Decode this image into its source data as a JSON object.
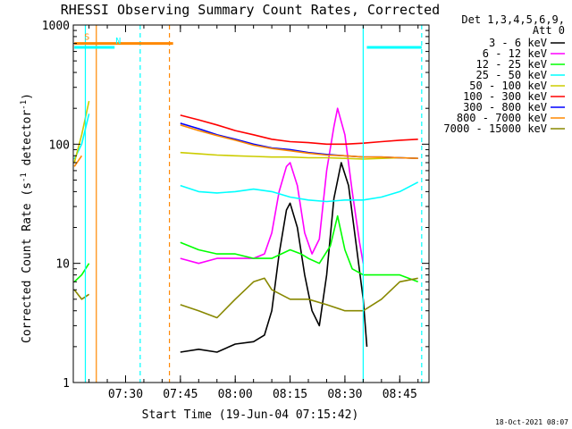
{
  "chart_data": {
    "type": "line",
    "title": "RHESSI Observing Summary Count Rates, Corrected",
    "xlabel": "Start Time (19-Jun-04 07:15:42)",
    "ylabel_main": "Corrected Count Rate (s",
    "ylabel_sup1": "-1",
    "ylabel_mid": " detector",
    "ylabel_sup2": "-1",
    "ylabel_end": ")",
    "yscale": "log",
    "xlim": [
      "07:15:42",
      "08:53:00"
    ],
    "ylim": [
      1,
      1000
    ],
    "x_ticks": [
      {
        "label": "07:30",
        "t": "07:30"
      },
      {
        "label": "07:45",
        "t": "07:45"
      },
      {
        "label": "08:00",
        "t": "08:00"
      },
      {
        "label": "08:15",
        "t": "08:15"
      },
      {
        "label": "08:30",
        "t": "08:30"
      },
      {
        "label": "08:45",
        "t": "08:45"
      }
    ],
    "y_ticks": [
      {
        "label": "1",
        "v": 1
      },
      {
        "label": "10",
        "v": 10
      },
      {
        "label": "100",
        "v": 100
      },
      {
        "label": "1000",
        "v": 1000
      }
    ],
    "legend_header": [
      "Det 1,3,4,5,6,9,",
      "Att 0"
    ],
    "legend_position": "right",
    "series": [
      {
        "name": "3 - 6 keV",
        "color": "#000000",
        "points": [
          [
            "07:45",
            "1.8"
          ],
          [
            "07:50",
            "1.9"
          ],
          [
            "07:55",
            "1.8"
          ],
          [
            "08:00",
            "2.1"
          ],
          [
            "08:05",
            "2.2"
          ],
          [
            "08:08",
            "2.5"
          ],
          [
            "08:10",
            "4"
          ],
          [
            "08:12",
            "12"
          ],
          [
            "08:14",
            "28"
          ],
          [
            "08:15",
            "32"
          ],
          [
            "08:17",
            "20"
          ],
          [
            "08:19",
            "8"
          ],
          [
            "08:21",
            "4"
          ],
          [
            "08:23",
            "3"
          ],
          [
            "08:25",
            "8"
          ],
          [
            "08:27",
            "35"
          ],
          [
            "08:29",
            "70"
          ],
          [
            "08:31",
            "45"
          ],
          [
            "08:33",
            "15"
          ],
          [
            "08:35",
            "5"
          ],
          [
            "08:36",
            "2"
          ]
        ]
      },
      {
        "name": "6 - 12 keV",
        "color": "#ff00ff",
        "points": [
          [
            "07:45",
            "11"
          ],
          [
            "07:50",
            "10"
          ],
          [
            "07:55",
            "11"
          ],
          [
            "08:00",
            "11"
          ],
          [
            "08:05",
            "11"
          ],
          [
            "08:08",
            "12"
          ],
          [
            "08:10",
            "18"
          ],
          [
            "08:12",
            "40"
          ],
          [
            "08:14",
            "65"
          ],
          [
            "08:15",
            "70"
          ],
          [
            "08:17",
            "45"
          ],
          [
            "08:19",
            "18"
          ],
          [
            "08:21",
            "12"
          ],
          [
            "08:23",
            "16"
          ],
          [
            "08:25",
            "60"
          ],
          [
            "08:27",
            "140"
          ],
          [
            "08:28",
            "200"
          ],
          [
            "08:30",
            "120"
          ],
          [
            "08:32",
            "40"
          ],
          [
            "08:34",
            "15"
          ],
          [
            "08:35",
            "10"
          ]
        ]
      },
      {
        "name": "12 - 25 keV",
        "color": "#00ff00",
        "points": [
          [
            "07:16",
            "7"
          ],
          [
            "07:18",
            "8"
          ],
          [
            "07:20",
            "10"
          ],
          [
            "07:45",
            "15"
          ],
          [
            "07:50",
            "13"
          ],
          [
            "07:55",
            "12"
          ],
          [
            "08:00",
            "12"
          ],
          [
            "08:05",
            "11"
          ],
          [
            "08:10",
            "11"
          ],
          [
            "08:15",
            "13"
          ],
          [
            "08:18",
            "12"
          ],
          [
            "08:20",
            "11"
          ],
          [
            "08:23",
            "10"
          ],
          [
            "08:26",
            "14"
          ],
          [
            "08:28",
            "25"
          ],
          [
            "08:30",
            "13"
          ],
          [
            "08:32",
            "9"
          ],
          [
            "08:35",
            "8"
          ],
          [
            "08:40",
            "8"
          ],
          [
            "08:45",
            "8"
          ],
          [
            "08:50",
            "7"
          ]
        ]
      },
      {
        "name": "25 - 50 keV",
        "color": "#00ffff",
        "points": [
          [
            "07:16",
            "75"
          ],
          [
            "07:18",
            "100"
          ],
          [
            "07:20",
            "180"
          ],
          [
            "07:45",
            "45"
          ],
          [
            "07:50",
            "40"
          ],
          [
            "07:55",
            "39"
          ],
          [
            "08:00",
            "40"
          ],
          [
            "08:05",
            "42"
          ],
          [
            "08:10",
            "40"
          ],
          [
            "08:15",
            "36"
          ],
          [
            "08:20",
            "34"
          ],
          [
            "08:25",
            "33"
          ],
          [
            "08:30",
            "34"
          ],
          [
            "08:35",
            "34"
          ],
          [
            "08:40",
            "36"
          ],
          [
            "08:45",
            "40"
          ],
          [
            "08:50",
            "48"
          ]
        ]
      },
      {
        "name": "50 - 100 keV",
        "color": "#cccc00",
        "points": [
          [
            "07:16",
            "70"
          ],
          [
            "07:18",
            "120"
          ],
          [
            "07:20",
            "230"
          ],
          [
            "07:45",
            "85"
          ],
          [
            "07:50",
            "83"
          ],
          [
            "07:55",
            "81"
          ],
          [
            "08:00",
            "80"
          ],
          [
            "08:05",
            "79"
          ],
          [
            "08:10",
            "78"
          ],
          [
            "08:15",
            "78"
          ],
          [
            "08:20",
            "77"
          ],
          [
            "08:25",
            "77"
          ],
          [
            "08:30",
            "76"
          ],
          [
            "08:35",
            "75"
          ],
          [
            "08:40",
            "76"
          ],
          [
            "08:45",
            "77"
          ],
          [
            "08:50",
            "76"
          ]
        ]
      },
      {
        "name": "100 - 300 keV",
        "color": "#ff0000",
        "points": [
          [
            "07:45",
            "175"
          ],
          [
            "07:50",
            "160"
          ],
          [
            "07:55",
            "145"
          ],
          [
            "08:00",
            "130"
          ],
          [
            "08:05",
            "120"
          ],
          [
            "08:10",
            "110"
          ],
          [
            "08:15",
            "105"
          ],
          [
            "08:20",
            "103"
          ],
          [
            "08:25",
            "100"
          ],
          [
            "08:30",
            "100"
          ],
          [
            "08:35",
            "102"
          ],
          [
            "08:40",
            "105"
          ],
          [
            "08:45",
            "108"
          ],
          [
            "08:50",
            "110"
          ]
        ]
      },
      {
        "name": "300 - 800 keV",
        "color": "#0000ff",
        "points": [
          [
            "07:45",
            "150"
          ],
          [
            "07:50",
            "135"
          ],
          [
            "07:55",
            "120"
          ],
          [
            "08:00",
            "110"
          ],
          [
            "08:05",
            "100"
          ],
          [
            "08:10",
            "93"
          ],
          [
            "08:15",
            "90"
          ],
          [
            "08:20",
            "85"
          ],
          [
            "08:25",
            "82"
          ],
          [
            "08:30",
            "80"
          ],
          [
            "08:35",
            "78"
          ],
          [
            "08:40",
            "78"
          ],
          [
            "08:45",
            "77"
          ],
          [
            "08:50",
            "76"
          ]
        ]
      },
      {
        "name": "800 - 7000 keV",
        "color": "#ff8800",
        "points": [
          [
            "07:16",
            "65"
          ],
          [
            "07:18",
            "80"
          ],
          [
            "07:45",
            "145"
          ],
          [
            "07:50",
            "130"
          ],
          [
            "07:55",
            "118"
          ],
          [
            "08:00",
            "108"
          ],
          [
            "08:05",
            "98"
          ],
          [
            "08:10",
            "92"
          ],
          [
            "08:15",
            "88"
          ],
          [
            "08:20",
            "84"
          ],
          [
            "08:25",
            "81"
          ],
          [
            "08:30",
            "80"
          ],
          [
            "08:35",
            "78"
          ],
          [
            "08:40",
            "78"
          ],
          [
            "08:45",
            "77"
          ],
          [
            "08:50",
            "76"
          ]
        ]
      },
      {
        "name": "7000 - 15000 keV",
        "color": "#888800",
        "points": [
          [
            "07:16",
            "6"
          ],
          [
            "07:18",
            "5"
          ],
          [
            "07:20",
            "5.5"
          ],
          [
            "07:45",
            "4.5"
          ],
          [
            "07:50",
            "4"
          ],
          [
            "07:55",
            "3.5"
          ],
          [
            "08:00",
            "5"
          ],
          [
            "08:05",
            "7"
          ],
          [
            "08:08",
            "7.5"
          ],
          [
            "08:10",
            "6"
          ],
          [
            "08:15",
            "5"
          ],
          [
            "08:20",
            "5"
          ],
          [
            "08:25",
            "4.5"
          ],
          [
            "08:30",
            "4"
          ],
          [
            "08:35",
            "4"
          ],
          [
            "08:40",
            "5"
          ],
          [
            "08:45",
            "7"
          ],
          [
            "08:50",
            "7.5"
          ]
        ]
      }
    ],
    "annotations": [
      {
        "label": "S",
        "color": "#ff8800",
        "from": "07:16",
        "to": "07:43",
        "level": "700"
      },
      {
        "label": "N",
        "color": "#00ffff",
        "from": "07:16",
        "to": "07:27",
        "level": "650"
      },
      {
        "label": "",
        "color": "#00ffff",
        "from": "08:36",
        "to": "08:51",
        "level": "650"
      }
    ],
    "vertical_lines": [
      {
        "t": "07:19",
        "color": "#00ffff",
        "style": "solid"
      },
      {
        "t": "07:22",
        "color": "#ff8800",
        "style": "solid"
      },
      {
        "t": "07:34",
        "color": "#00ffff",
        "style": "dashed"
      },
      {
        "t": "07:42",
        "color": "#ff8800",
        "style": "dashed"
      },
      {
        "t": "08:35",
        "color": "#00ffff",
        "style": "solid"
      },
      {
        "t": "08:51",
        "color": "#00ffff",
        "style": "dashed"
      }
    ],
    "footer": "18-Oct-2021 08:07"
  }
}
